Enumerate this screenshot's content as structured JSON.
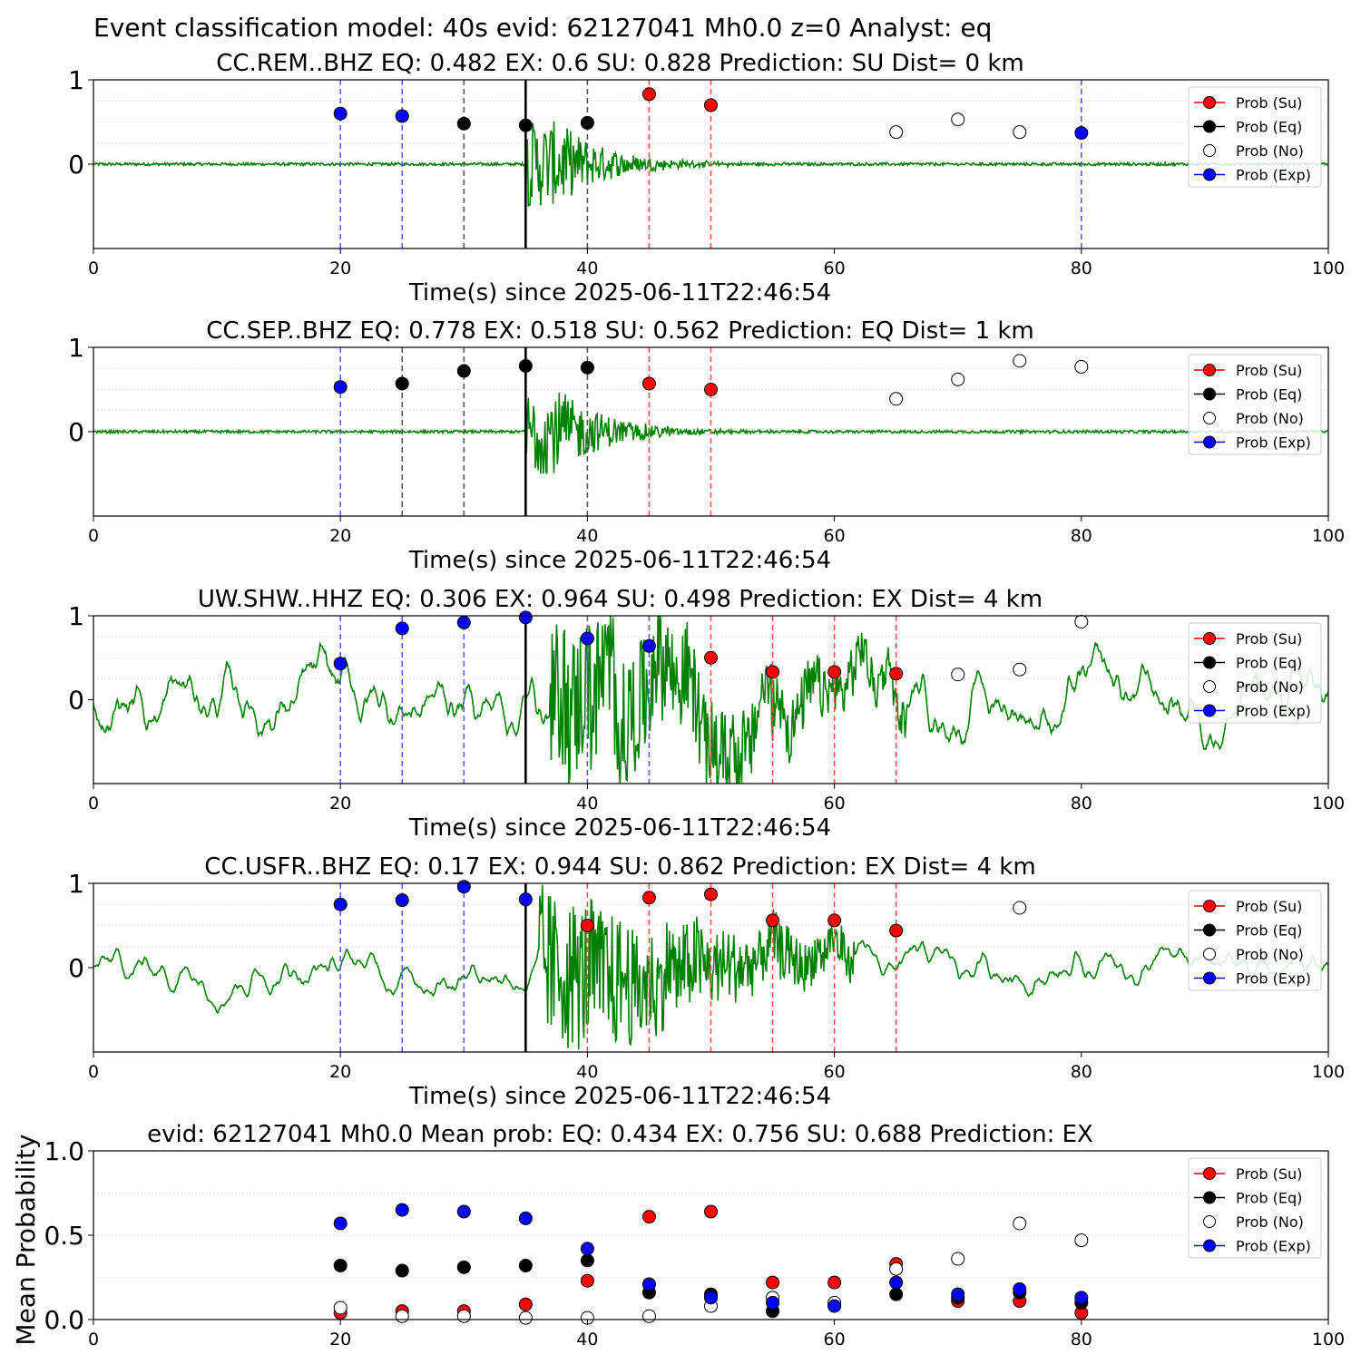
{
  "suptitle": "Event classification model: 40s evid: 62127041 Mh0.0 z=0 Analyst: eq",
  "colors": {
    "su": "#ff0000",
    "eq": "#000000",
    "no": "#ffffff",
    "exp": "#0000ff",
    "trace": "#008000",
    "vline_su": "#ff4d4d",
    "vline_eq": "#555555",
    "vline_exp": "#5a5aff"
  },
  "legend": {
    "placement": "top-right",
    "entries": [
      "Prob (Su)",
      "Prob (Eq)",
      "Prob (No)",
      "Prob (Exp)"
    ]
  },
  "chart_data": [
    {
      "type": "scatter",
      "title": "CC.REM..BHZ   EQ: 0.482  EX: 0.6  SU: 0.828   Prediction: SU    Dist= 0 km",
      "xlabel": "Time(s) since 2025-06-11T22:46:54",
      "ylabel": "",
      "xlim": [
        0,
        100
      ],
      "ylim": [
        -1,
        1
      ],
      "xticks": [
        "0",
        "20",
        "40",
        "60",
        "80",
        "100"
      ],
      "yticks": [
        "1",
        "0"
      ],
      "pick_time": 35,
      "trace": {
        "style": "quiet",
        "amplitude": 0.02,
        "signal_start": 35,
        "signal_peak": 1.0,
        "signal_decay": 4
      },
      "vlines": [
        {
          "x": 20,
          "cls": "exp"
        },
        {
          "x": 25,
          "cls": "exp"
        },
        {
          "x": 30,
          "cls": "eq"
        },
        {
          "x": 40,
          "cls": "eq"
        },
        {
          "x": 45,
          "cls": "su"
        },
        {
          "x": 50,
          "cls": "su"
        },
        {
          "x": 80,
          "cls": "exp"
        }
      ],
      "points": [
        {
          "x": 20,
          "y": 0.6,
          "cls": "exp"
        },
        {
          "x": 25,
          "y": 0.57,
          "cls": "exp"
        },
        {
          "x": 30,
          "y": 0.48,
          "cls": "eq"
        },
        {
          "x": 35,
          "y": 0.46,
          "cls": "eq"
        },
        {
          "x": 40,
          "y": 0.49,
          "cls": "eq"
        },
        {
          "x": 45,
          "y": 0.83,
          "cls": "su"
        },
        {
          "x": 50,
          "y": 0.7,
          "cls": "su"
        },
        {
          "x": 65,
          "y": 0.38,
          "cls": "no"
        },
        {
          "x": 70,
          "y": 0.53,
          "cls": "no"
        },
        {
          "x": 75,
          "y": 0.38,
          "cls": "no"
        },
        {
          "x": 80,
          "y": 0.37,
          "cls": "exp"
        }
      ]
    },
    {
      "type": "scatter",
      "title": "CC.SEP..BHZ   EQ: 0.778  EX: 0.518  SU: 0.562   Prediction: EQ    Dist= 1 km",
      "xlabel": "Time(s) since 2025-06-11T22:46:54",
      "ylabel": "",
      "xlim": [
        0,
        100
      ],
      "ylim": [
        -1,
        1
      ],
      "xticks": [
        "0",
        "20",
        "40",
        "60",
        "80",
        "100"
      ],
      "yticks": [
        "1",
        "0"
      ],
      "pick_time": 35,
      "trace": {
        "style": "quiet",
        "amplitude": 0.02,
        "signal_start": 35,
        "signal_peak": 1.0,
        "signal_decay": 4
      },
      "vlines": [
        {
          "x": 20,
          "cls": "exp"
        },
        {
          "x": 25,
          "cls": "eq"
        },
        {
          "x": 30,
          "cls": "eq"
        },
        {
          "x": 40,
          "cls": "eq"
        },
        {
          "x": 45,
          "cls": "su"
        },
        {
          "x": 50,
          "cls": "su"
        }
      ],
      "points": [
        {
          "x": 20,
          "y": 0.53,
          "cls": "exp"
        },
        {
          "x": 25,
          "y": 0.57,
          "cls": "eq"
        },
        {
          "x": 30,
          "y": 0.72,
          "cls": "eq"
        },
        {
          "x": 35,
          "y": 0.78,
          "cls": "eq"
        },
        {
          "x": 40,
          "y": 0.76,
          "cls": "eq"
        },
        {
          "x": 45,
          "y": 0.57,
          "cls": "su"
        },
        {
          "x": 50,
          "y": 0.5,
          "cls": "su"
        },
        {
          "x": 65,
          "y": 0.39,
          "cls": "no"
        },
        {
          "x": 70,
          "y": 0.62,
          "cls": "no"
        },
        {
          "x": 75,
          "y": 0.84,
          "cls": "no"
        },
        {
          "x": 80,
          "y": 0.77,
          "cls": "no"
        }
      ]
    },
    {
      "type": "scatter",
      "title": "UW.SHW..HHZ   EQ: 0.306  EX: 0.964  SU: 0.498   Prediction: EX    Dist= 4 km",
      "xlabel": "Time(s) since 2025-06-11T22:46:54",
      "ylabel": "",
      "xlim": [
        0,
        100
      ],
      "ylim": [
        -1,
        1
      ],
      "xticks": [
        "0",
        "20",
        "40",
        "60",
        "80",
        "100"
      ],
      "yticks": [
        "1",
        "0"
      ],
      "pick_time": 35,
      "trace": {
        "style": "noisy",
        "amplitude": 0.35,
        "signal_start": 37,
        "signal_peak": 1.0,
        "signal_decay": 18
      },
      "vlines": [
        {
          "x": 20,
          "cls": "exp"
        },
        {
          "x": 25,
          "cls": "exp"
        },
        {
          "x": 30,
          "cls": "exp"
        },
        {
          "x": 40,
          "cls": "exp"
        },
        {
          "x": 45,
          "cls": "exp"
        },
        {
          "x": 50,
          "cls": "su"
        },
        {
          "x": 55,
          "cls": "su"
        },
        {
          "x": 60,
          "cls": "su"
        },
        {
          "x": 65,
          "cls": "su"
        }
      ],
      "points": [
        {
          "x": 20,
          "y": 0.43,
          "cls": "exp"
        },
        {
          "x": 25,
          "y": 0.85,
          "cls": "exp"
        },
        {
          "x": 30,
          "y": 0.92,
          "cls": "exp"
        },
        {
          "x": 35,
          "y": 0.98,
          "cls": "exp"
        },
        {
          "x": 40,
          "y": 0.73,
          "cls": "exp"
        },
        {
          "x": 45,
          "y": 0.64,
          "cls": "exp"
        },
        {
          "x": 50,
          "y": 0.5,
          "cls": "su"
        },
        {
          "x": 55,
          "y": 0.33,
          "cls": "su"
        },
        {
          "x": 60,
          "y": 0.33,
          "cls": "su"
        },
        {
          "x": 65,
          "y": 0.31,
          "cls": "su"
        },
        {
          "x": 70,
          "y": 0.3,
          "cls": "no"
        },
        {
          "x": 75,
          "y": 0.36,
          "cls": "no"
        },
        {
          "x": 80,
          "y": 0.93,
          "cls": "no"
        }
      ]
    },
    {
      "type": "scatter",
      "title": "CC.USFR..BHZ   EQ: 0.17  EX: 0.944  SU: 0.862   Prediction: EX    Dist= 4 km",
      "xlabel": "Time(s) since 2025-06-11T22:46:54",
      "ylabel": "",
      "xlim": [
        0,
        100
      ],
      "ylim": [
        -1,
        1
      ],
      "xticks": [
        "0",
        "20",
        "40",
        "60",
        "80",
        "100"
      ],
      "yticks": [
        "1",
        "0"
      ],
      "pick_time": 35,
      "trace": {
        "style": "noisy",
        "amplitude": 0.18,
        "signal_start": 36,
        "signal_peak": 1.0,
        "signal_decay": 16
      },
      "vlines": [
        {
          "x": 20,
          "cls": "exp"
        },
        {
          "x": 25,
          "cls": "exp"
        },
        {
          "x": 30,
          "cls": "exp"
        },
        {
          "x": 40,
          "cls": "su"
        },
        {
          "x": 45,
          "cls": "su"
        },
        {
          "x": 50,
          "cls": "su"
        },
        {
          "x": 55,
          "cls": "su"
        },
        {
          "x": 60,
          "cls": "su"
        },
        {
          "x": 65,
          "cls": "su"
        }
      ],
      "points": [
        {
          "x": 20,
          "y": 0.75,
          "cls": "exp"
        },
        {
          "x": 25,
          "y": 0.8,
          "cls": "exp"
        },
        {
          "x": 30,
          "y": 0.96,
          "cls": "exp"
        },
        {
          "x": 35,
          "y": 0.81,
          "cls": "exp"
        },
        {
          "x": 40,
          "y": 0.5,
          "cls": "su"
        },
        {
          "x": 45,
          "y": 0.83,
          "cls": "su"
        },
        {
          "x": 50,
          "y": 0.87,
          "cls": "su"
        },
        {
          "x": 55,
          "y": 0.56,
          "cls": "su"
        },
        {
          "x": 60,
          "y": 0.56,
          "cls": "su"
        },
        {
          "x": 65,
          "y": 0.44,
          "cls": "su"
        },
        {
          "x": 75,
          "y": 0.71,
          "cls": "no"
        }
      ]
    },
    {
      "type": "scatter",
      "title": "evid: 62127041  Mh0.0   Mean prob:   EQ: 0.434  EX: 0.756  SU: 0.688   Prediction: EX",
      "xlabel": "",
      "ylabel": "Mean Probability",
      "xlim": [
        0,
        100
      ],
      "ylim": [
        0,
        1
      ],
      "xticks": [
        "0",
        "20",
        "40",
        "60",
        "80",
        "100"
      ],
      "yticks": [
        "1.0",
        "0.5",
        "0.0"
      ],
      "series": [
        {
          "name": "Prob (Su)",
          "cls": "su",
          "x": [
            20,
            25,
            30,
            35,
            40,
            45,
            50,
            55,
            60,
            65,
            70,
            75,
            80
          ],
          "values": [
            0.04,
            0.05,
            0.05,
            0.09,
            0.23,
            0.61,
            0.64,
            0.22,
            0.22,
            0.33,
            0.11,
            0.11,
            0.04
          ]
        },
        {
          "name": "Prob (Eq)",
          "cls": "eq",
          "x": [
            20,
            25,
            30,
            35,
            40,
            45,
            50,
            55,
            60,
            65,
            70,
            75,
            80
          ],
          "values": [
            0.32,
            0.29,
            0.31,
            0.32,
            0.35,
            0.16,
            0.15,
            0.05,
            0.09,
            0.15,
            0.13,
            0.16,
            0.1
          ]
        },
        {
          "name": "Prob (No)",
          "cls": "no",
          "x": [
            20,
            25,
            30,
            35,
            40,
            45,
            50,
            55,
            60,
            65,
            70,
            75,
            80
          ],
          "values": [
            0.07,
            0.02,
            0.02,
            0.01,
            0.01,
            0.02,
            0.08,
            0.13,
            0.1,
            0.3,
            0.36,
            0.57,
            0.47
          ]
        },
        {
          "name": "Prob (Exp)",
          "cls": "exp",
          "x": [
            20,
            25,
            30,
            35,
            40,
            45,
            50,
            55,
            60,
            65,
            70,
            75,
            80
          ],
          "values": [
            0.57,
            0.65,
            0.64,
            0.6,
            0.42,
            0.21,
            0.13,
            0.1,
            0.08,
            0.22,
            0.15,
            0.18,
            0.13
          ]
        }
      ]
    }
  ]
}
